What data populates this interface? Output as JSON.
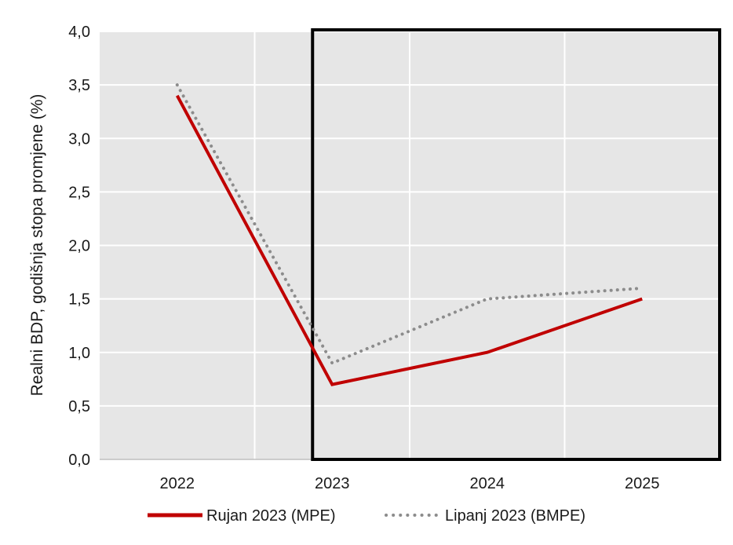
{
  "chart_data": {
    "type": "line",
    "title": "",
    "ylabel": "Realni BDP, godišnja stopa promjene (%)",
    "xlabel": "",
    "categories": [
      "2022",
      "2023",
      "2024",
      "2025"
    ],
    "ylim": [
      0,
      4
    ],
    "yticks": [
      "0,0",
      "0,5",
      "1,0",
      "1,5",
      "2,0",
      "2,5",
      "3,0",
      "3,5",
      "4,0"
    ],
    "grid": true,
    "legend_position": "bottom",
    "highlight_box_from_category": "2023",
    "series": [
      {
        "name": "Rujan 2023 (MPE)",
        "values": [
          3.4,
          0.7,
          1.0,
          1.5
        ],
        "color": "#c00000",
        "style": "solid"
      },
      {
        "name": "Lipanj 2023 (BMPE)",
        "values": [
          3.5,
          0.9,
          1.5,
          1.6
        ],
        "color": "#8c8c8c",
        "style": "dotted"
      }
    ],
    "colors": {
      "plot_background": "#e6e6e6",
      "grid": "#ffffff",
      "box": "#000000"
    }
  }
}
